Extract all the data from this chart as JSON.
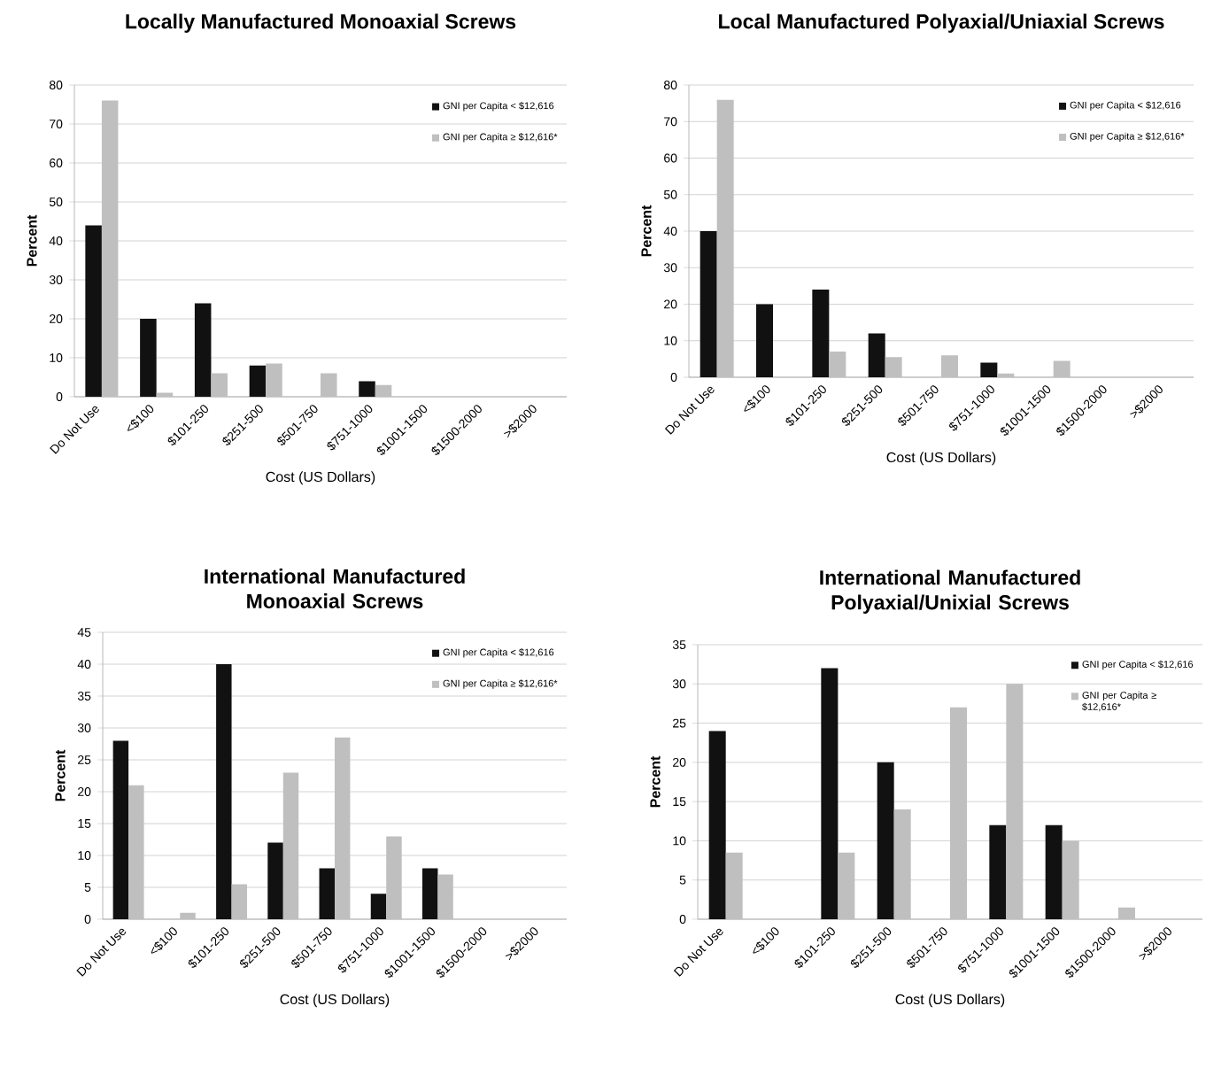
{
  "chart_data": [
    {
      "type": "bar",
      "title": "Locally Manufactured Monoaxial Screws",
      "xlabel": "Cost (US Dollars)",
      "ylabel": "Percent",
      "categories": [
        "Do Not Use",
        "<$100",
        "$101-250",
        "$251-500",
        "$501-750",
        "$751-1000",
        "$1001-1500",
        "$1500-2000",
        ">$2000"
      ],
      "series": [
        {
          "name": "GNI per Capita < $12,616",
          "color": "#111111",
          "values": [
            44,
            20,
            24,
            8,
            null,
            4,
            null,
            null,
            null
          ]
        },
        {
          "name": "GNI per Capita ≥ $12,616*",
          "color": "#bfbfbf",
          "values": [
            76,
            1,
            6,
            8.5,
            6,
            3,
            null,
            null,
            null
          ]
        }
      ],
      "ylim": [
        0,
        80
      ],
      "yticks": [
        0,
        10,
        20,
        30,
        40,
        50,
        60,
        70,
        80
      ],
      "grid": "y",
      "legend": "top right"
    },
    {
      "type": "bar",
      "title": "Local Manufactured Polyaxial/Uniaxial Screws",
      "xlabel": "Cost (US Dollars)",
      "ylabel": "Percent",
      "categories": [
        "Do Not Use",
        "<$100",
        "$101-250",
        "$251-500",
        "$501-750",
        "$751-1000",
        "$1001-1500",
        "$1500-2000",
        ">$2000"
      ],
      "series": [
        {
          "name": "GNI per Capita < $12,616",
          "color": "#111111",
          "values": [
            40,
            20,
            24,
            12,
            null,
            4,
            null,
            null,
            null
          ]
        },
        {
          "name": "GNI per Capita ≥ $12,616*",
          "color": "#bfbfbf",
          "values": [
            76,
            null,
            7,
            5.5,
            6,
            1,
            4.5,
            null,
            null
          ]
        }
      ],
      "ylim": [
        0,
        80
      ],
      "yticks": [
        0,
        10,
        20,
        30,
        40,
        50,
        60,
        70,
        80
      ],
      "grid": "y",
      "legend": "top right"
    },
    {
      "type": "bar",
      "title": "International Manufactured Monoaxial Screws",
      "xlabel": "Cost (US Dollars)",
      "ylabel": "Percent",
      "categories": [
        "Do Not Use",
        "<$100",
        "$101-250",
        "$251-500",
        "$501-750",
        "$751-1000",
        "$1001-1500",
        "$1500-2000",
        ">$2000"
      ],
      "series": [
        {
          "name": "GNI per Capita < $12,616",
          "color": "#111111",
          "values": [
            28,
            null,
            40,
            12,
            8,
            4,
            8,
            null,
            null
          ]
        },
        {
          "name": "GNI per Capita ≥ $12,616*",
          "color": "#bfbfbf",
          "values": [
            21,
            1,
            5.5,
            23,
            28.5,
            13,
            7,
            null,
            null
          ]
        }
      ],
      "ylim": [
        0,
        45
      ],
      "yticks": [
        0,
        5,
        10,
        15,
        20,
        25,
        30,
        35,
        40,
        45
      ],
      "grid": "y",
      "legend": "top right"
    },
    {
      "type": "bar",
      "title": "International Manufactured Polyaxial/Unixial Screws",
      "xlabel": "Cost (US Dollars)",
      "ylabel": "Percent",
      "categories": [
        "Do Not Use",
        "<$100",
        "$101-250",
        "$251-500",
        "$501-750",
        "$751-1000",
        "$1001-1500",
        "$1500-2000",
        ">$2000"
      ],
      "series": [
        {
          "name": "GNI per Capita < $12,616",
          "color": "#111111",
          "values": [
            24,
            null,
            32,
            20,
            null,
            12,
            12,
            null,
            null
          ]
        },
        {
          "name": "GNI per Capita ≥ $12,616*",
          "color": "#bfbfbf",
          "values": [
            8.5,
            null,
            8.5,
            14,
            27,
            30,
            10,
            1.5,
            null
          ]
        }
      ],
      "ylim": [
        0,
        35
      ],
      "yticks": [
        0,
        5,
        10,
        15,
        20,
        25,
        30,
        35
      ],
      "grid": "y",
      "legend": "top right"
    }
  ]
}
